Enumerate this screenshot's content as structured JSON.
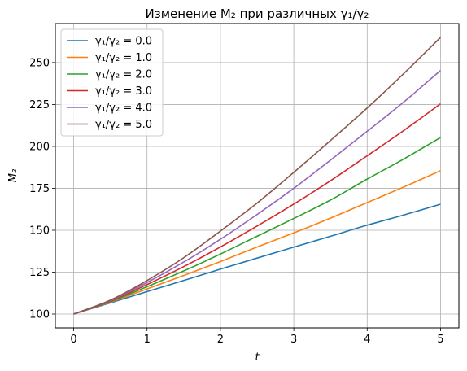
{
  "chart_data": {
    "type": "line",
    "title": "Изменение M₂ при различных γ₁/γ₂",
    "xlabel": "t",
    "ylabel": "M₂",
    "xlim": [
      -0.25,
      5.25
    ],
    "ylim": [
      91.75,
      273.25
    ],
    "xticks": [
      0,
      1,
      2,
      3,
      4,
      5
    ],
    "yticks": [
      100,
      125,
      150,
      175,
      200,
      225,
      250
    ],
    "grid": true,
    "legend_position": "top-left",
    "x": [
      0,
      0.5,
      1,
      1.5,
      2,
      2.5,
      3,
      3.5,
      4,
      4.5,
      5
    ],
    "series": [
      {
        "name": "γ₁/γ₂ = 0.0",
        "color": "#1f77b4",
        "values": [
          100,
          106.7,
          113.4,
          120.0,
          126.8,
          133.4,
          139.9,
          146.4,
          153.0,
          159.1,
          165.5
        ]
      },
      {
        "name": "γ₁/γ₂ = 1.0",
        "color": "#ff7f0e",
        "values": [
          100,
          107.1,
          115.0,
          123.0,
          131.3,
          140.0,
          148.4,
          157.2,
          166.5,
          175.8,
          185.5
        ]
      },
      {
        "name": "γ₁/γ₂ = 2.0",
        "color": "#2ca02c",
        "values": [
          100,
          107.4,
          116.3,
          125.7,
          135.8,
          146.4,
          157.0,
          168.0,
          180.5,
          192.5,
          205.3
        ]
      },
      {
        "name": "γ₁/γ₂ = 3.0",
        "color": "#d62728",
        "values": [
          100,
          107.7,
          117.6,
          128.3,
          140.0,
          152.5,
          165.6,
          179.5,
          194.4,
          209.5,
          225.4
        ]
      },
      {
        "name": "γ₁/γ₂ = 4.0",
        "color": "#9467bd",
        "values": [
          100,
          108.0,
          118.8,
          131.0,
          144.6,
          159.4,
          175.0,
          191.8,
          209.0,
          226.5,
          245.3
        ]
      },
      {
        "name": "γ₁/γ₂ = 5.0",
        "color": "#8c564b",
        "values": [
          100,
          108.3,
          120.0,
          133.6,
          149.5,
          166.2,
          184.5,
          203.5,
          222.9,
          243.5,
          265.0
        ]
      }
    ]
  }
}
